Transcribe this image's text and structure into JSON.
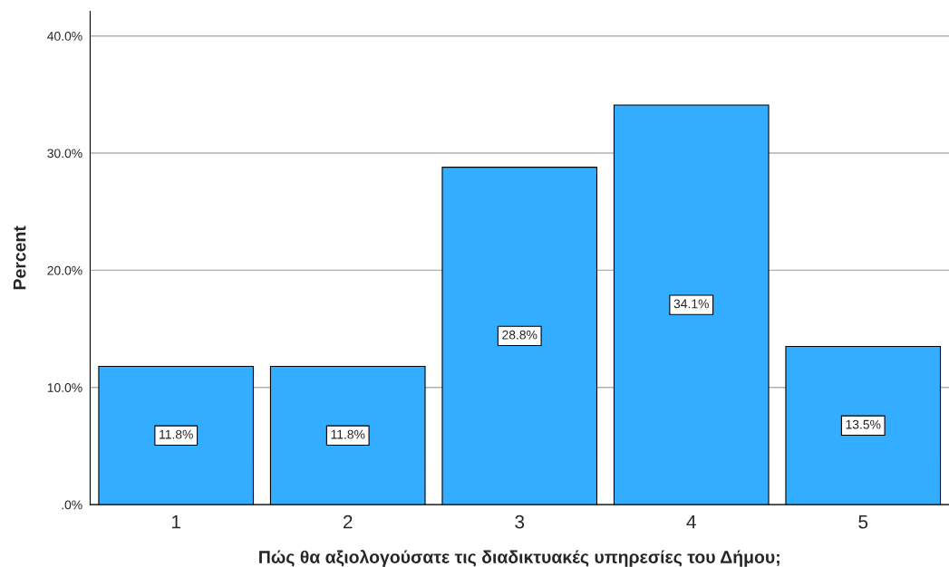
{
  "chart_data": {
    "type": "bar",
    "xlabel": "Πώς θα αξιολογούσατε τις διαδικτυακές υπηρεσίες του Δήμου;",
    "ylabel": "Percent",
    "categories": [
      "1",
      "2",
      "3",
      "4",
      "5"
    ],
    "values": [
      11.8,
      11.8,
      28.8,
      34.1,
      13.5
    ],
    "value_labels": [
      "11.8%",
      "11.8%",
      "28.8%",
      "34.1%",
      "13.5%"
    ],
    "color": "#33adff",
    "ylim": [
      0,
      42.1
    ],
    "yticks": [
      {
        "value": 0,
        "label": ".0%"
      },
      {
        "value": 10,
        "label": "10.0%"
      },
      {
        "value": 20,
        "label": "20.0%"
      },
      {
        "value": 30,
        "label": "30.0%"
      },
      {
        "value": 40,
        "label": "40.0%"
      }
    ],
    "grid": "y"
  }
}
